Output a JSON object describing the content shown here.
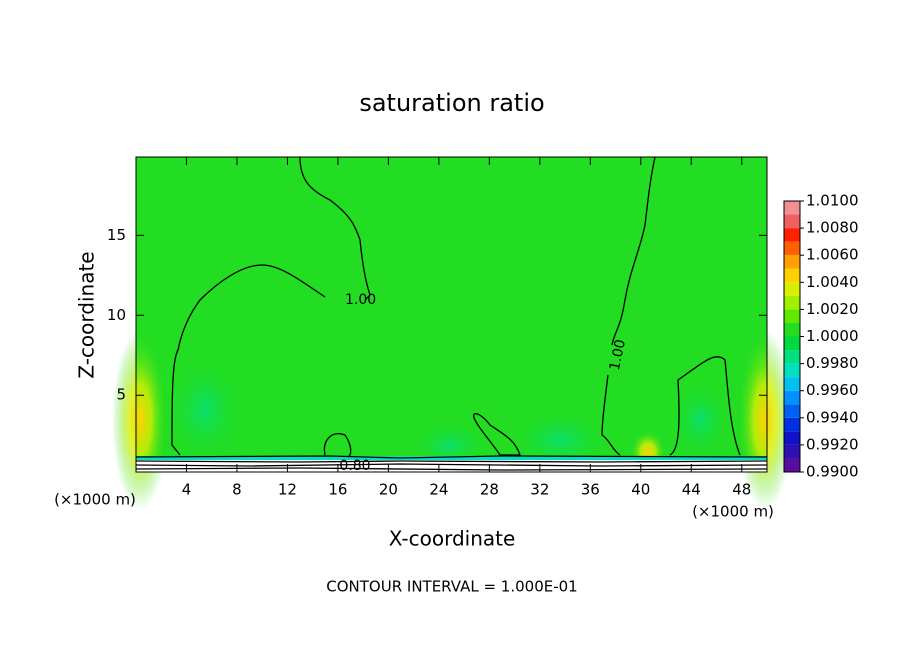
{
  "chart_data": {
    "type": "contour",
    "title": "saturation ratio",
    "xlabel": "X-coordinate",
    "ylabel": "Z-coordinate",
    "x_unit": "(×1000 m)",
    "y_unit": "(×1000 m)",
    "footnote": "CONTOUR INTERVAL = 1.000E-01",
    "contour_labels": [
      "1.00",
      "1.00",
      "0.80"
    ],
    "xlim": [
      0,
      50
    ],
    "xticks": [
      4,
      8,
      12,
      16,
      20,
      24,
      28,
      32,
      36,
      40,
      44,
      48
    ],
    "ylim": [
      0.2,
      19.9
    ],
    "yticks": [
      5,
      10,
      15
    ],
    "colorbar": {
      "clim": [
        0.99,
        1.01
      ],
      "ticks": [
        {
          "value": 0.99,
          "label": "0.9900"
        },
        {
          "value": 0.992,
          "label": "0.9920"
        },
        {
          "value": 0.994,
          "label": "0.9940"
        },
        {
          "value": 0.996,
          "label": "0.9960"
        },
        {
          "value": 0.998,
          "label": "0.9980"
        },
        {
          "value": 1.0,
          "label": "1.0000"
        },
        {
          "value": 1.002,
          "label": "1.0020"
        },
        {
          "value": 1.004,
          "label": "1.0040"
        },
        {
          "value": 1.006,
          "label": "1.0060"
        },
        {
          "value": 1.008,
          "label": "1.0080"
        },
        {
          "value": 1.01,
          "label": "1.0100"
        }
      ],
      "levels": [
        0.99,
        0.991,
        0.992,
        0.993,
        0.994,
        0.995,
        0.996,
        0.997,
        0.998,
        0.999,
        1.0,
        1.001,
        1.002,
        1.003,
        1.004,
        1.005,
        1.006,
        1.007,
        1.008,
        1.009,
        1.01
      ],
      "colors": [
        "#5a0ea0",
        "#3010b0",
        "#1010c8",
        "#0030e0",
        "#0060f0",
        "#0090ff",
        "#00c0f0",
        "#00e0c0",
        "#00e080",
        "#00d840",
        "#22dd22",
        "#60e800",
        "#a0f000",
        "#d8f000",
        "#ffd000",
        "#ffa000",
        "#ff6000",
        "#ff2000",
        "#f06060",
        "#f09090"
      ]
    }
  }
}
